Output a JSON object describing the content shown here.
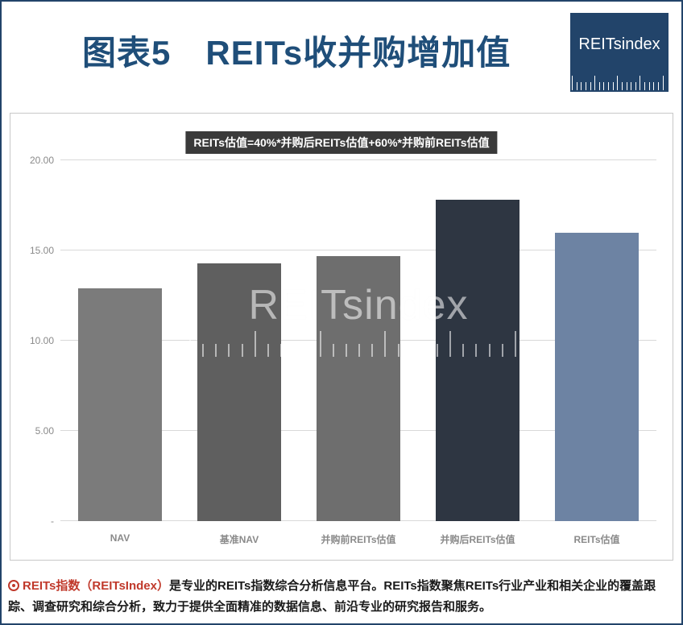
{
  "title": "图表5　REITs收并购增加值",
  "logo": {
    "text": "REITsindex"
  },
  "chart": {
    "type": "bar",
    "legend_text": "REITs估值=40%*并购后REITs估值+60%*并购前REITs估值",
    "legend_bg": "#3a3a3a",
    "legend_color": "#ffffff",
    "categories": [
      "NAV",
      "基准NAV",
      "并购前REITs估值",
      "并购后REITs估值",
      "REITs估值"
    ],
    "values": [
      12.9,
      14.3,
      14.7,
      17.8,
      16.0
    ],
    "bar_colors": [
      "#7b7b7b",
      "#5f5f5f",
      "#6e6e6e",
      "#2e3642",
      "#6d83a3"
    ],
    "ylim": [
      0,
      20
    ],
    "yticks": [
      0,
      5,
      10,
      15,
      20
    ],
    "ytick_labels": [
      "-",
      "5.00",
      "10.00",
      "15.00",
      "20.00"
    ],
    "grid_color": "#d9d9d9",
    "axis_label_color": "#8a8a8a",
    "axis_label_fontsize": 12,
    "background_color": "#ffffff",
    "bar_width_ratio": 0.7
  },
  "watermark": {
    "text": "REITsindex"
  },
  "footer": {
    "brand1": "REITs指数",
    "paren": "（REITsIndex）",
    "text_after": "是专业的REITs指数综合分析信息平台。REITs指数聚焦REITs行业产业和相关企业的覆盖跟踪、调查研究和综合分析，致力于提供全面精准的数据信息、前沿专业的研究报告和服务。"
  },
  "colors": {
    "frame": "#22446a",
    "title": "#1f4e79",
    "brand_red": "#c0392b"
  }
}
